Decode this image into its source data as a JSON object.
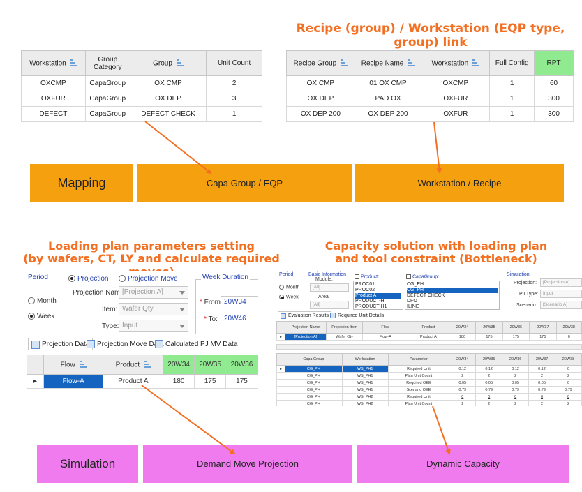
{
  "titles": {
    "recipe_link": "Recipe (group) / Workstation (EQP type, group) link",
    "loading_plan_1": "Loading plan parameters setting",
    "loading_plan_2": "(by wafers, CT, LY and calculate required moves)",
    "capacity_1": "Capacity solution with loading plan",
    "capacity_2": "and tool constraint (Bottleneck)"
  },
  "colors": {
    "title": "#f36f21",
    "orange_band": "#f5a10f",
    "pink_band": "#ef7bef",
    "arrow": "#f36f21",
    "highlight": "#1565c0",
    "green_header": "#90ea8f"
  },
  "workstation_table": {
    "headers": [
      "Workstation",
      "Group Category",
      "Group",
      "Unit Count"
    ],
    "rows": [
      [
        "OXCMP",
        "CapaGroup",
        "OX CMP",
        "2"
      ],
      [
        "OXFUR",
        "CapaGroup",
        "OX DEP",
        "3"
      ],
      [
        "DEFECT",
        "CapaGroup",
        "DEFECT CHECK",
        "1"
      ]
    ]
  },
  "recipe_table": {
    "headers": [
      "Recipe Group",
      "Recipe Name",
      "Workstation",
      "Full Config",
      "RPT"
    ],
    "rows": [
      [
        "OX CMP",
        "01 OX CMP",
        "OXCMP",
        "1",
        "60"
      ],
      [
        "OX DEP",
        "PAD OX",
        "OXFUR",
        "1",
        "300"
      ],
      [
        "OX DEP 200",
        "OX DEP 200",
        "OXFUR",
        "1",
        "300"
      ]
    ]
  },
  "bands": {
    "mapping": "Mapping",
    "capa_group": "Capa Group / EQP",
    "workstation_recipe": "Workstation / Recipe",
    "simulation": "Simulation",
    "demand_move": "Demand Move Projection",
    "dynamic_capacity": "Dynamic Capacity"
  },
  "loading_panel": {
    "period_label": "Period",
    "month": "Month",
    "week": "Week",
    "projection": "Projection",
    "projection_move": "Projection Move",
    "projection_name_label": "Projection Name:",
    "projection_name_value": "[Projection A]",
    "item_label": "Item:",
    "item_value": "Wafer Qty",
    "type_label": "Type:",
    "type_value": "Input",
    "week_duration_label": "Week Duration",
    "from_label": "From:",
    "from_value": "20W34",
    "to_label": "To:",
    "to_value": "20W46",
    "tabs": [
      "Projection Data",
      "Projection Move Data",
      "Calculated PJ MV Data"
    ],
    "grid_headers": [
      "Flow",
      "Product",
      "20W34",
      "20W35",
      "20W36"
    ],
    "grid_row": [
      "Flow-A",
      "Product A",
      "180",
      "175",
      "175"
    ]
  },
  "capacity_panel": {
    "period_label": "Period",
    "month": "Month",
    "week": "Week",
    "basic_info": "Basic Information",
    "module_label": "Module:",
    "module_value": "[All]",
    "area_label": "Area:",
    "area_value": "[All]",
    "product_label": "Product:",
    "products": [
      "PROC01",
      "PROC02",
      "Product A",
      "PRODUCT-H",
      "PRODUCT-H1"
    ],
    "capagroup_label": "CapaGroup:",
    "capagroups": [
      "CG_EH",
      "CG_PH",
      "DEFECT CHECK",
      "DFO",
      "ILINE"
    ],
    "simulation_label": "Simulation",
    "sim_projection_label": "Projection:",
    "sim_projection_value": "[Projection A]",
    "pj_type_label": "PJ Type:",
    "pj_type_value": "Input",
    "scenario_label": "Scenario:",
    "scenario_value": "[Scenario A]",
    "tabs": [
      "Evaluation Results",
      "Required Unit Details"
    ],
    "top_headers": [
      "Projection Name",
      "Projection Item",
      "Flow",
      "Product",
      "20W34",
      "20W35",
      "20W36",
      "20W37",
      "20W38"
    ],
    "top_row": [
      "[Projection A]",
      "Wafer Qty",
      "Flow-A",
      "Product A",
      "180",
      "175",
      "175",
      "175",
      "0"
    ],
    "bottom_headers": [
      "Capa Group",
      "Workstation",
      "Parameter",
      "20W34",
      "20W35",
      "20W36",
      "20W37",
      "20W38"
    ],
    "bottom_rows": [
      [
        "CG_PH",
        "WS_PH1",
        "Required Unit",
        "0.12",
        "0.12",
        "0.12",
        "0.12",
        "0"
      ],
      [
        "CG_PH",
        "WS_PH1",
        "Plan Unit Count",
        "2",
        "2",
        "2",
        "2",
        "2"
      ],
      [
        "CG_PH",
        "WS_PH1",
        "Required OEE",
        "0.05",
        "0.05",
        "0.05",
        "0.05",
        "0"
      ],
      [
        "CG_PH",
        "WS_PH1",
        "Scenario OEE",
        "0.79",
        "0.79",
        "0.79",
        "0.79",
        "0.79"
      ],
      [
        "CG_PH",
        "WS_PH2",
        "Required Unit",
        "0",
        "0",
        "0",
        "0",
        "0"
      ],
      [
        "CG_PH",
        "WS_PH2",
        "Plan Unit Count",
        "2",
        "2",
        "2",
        "2",
        "2"
      ]
    ]
  }
}
